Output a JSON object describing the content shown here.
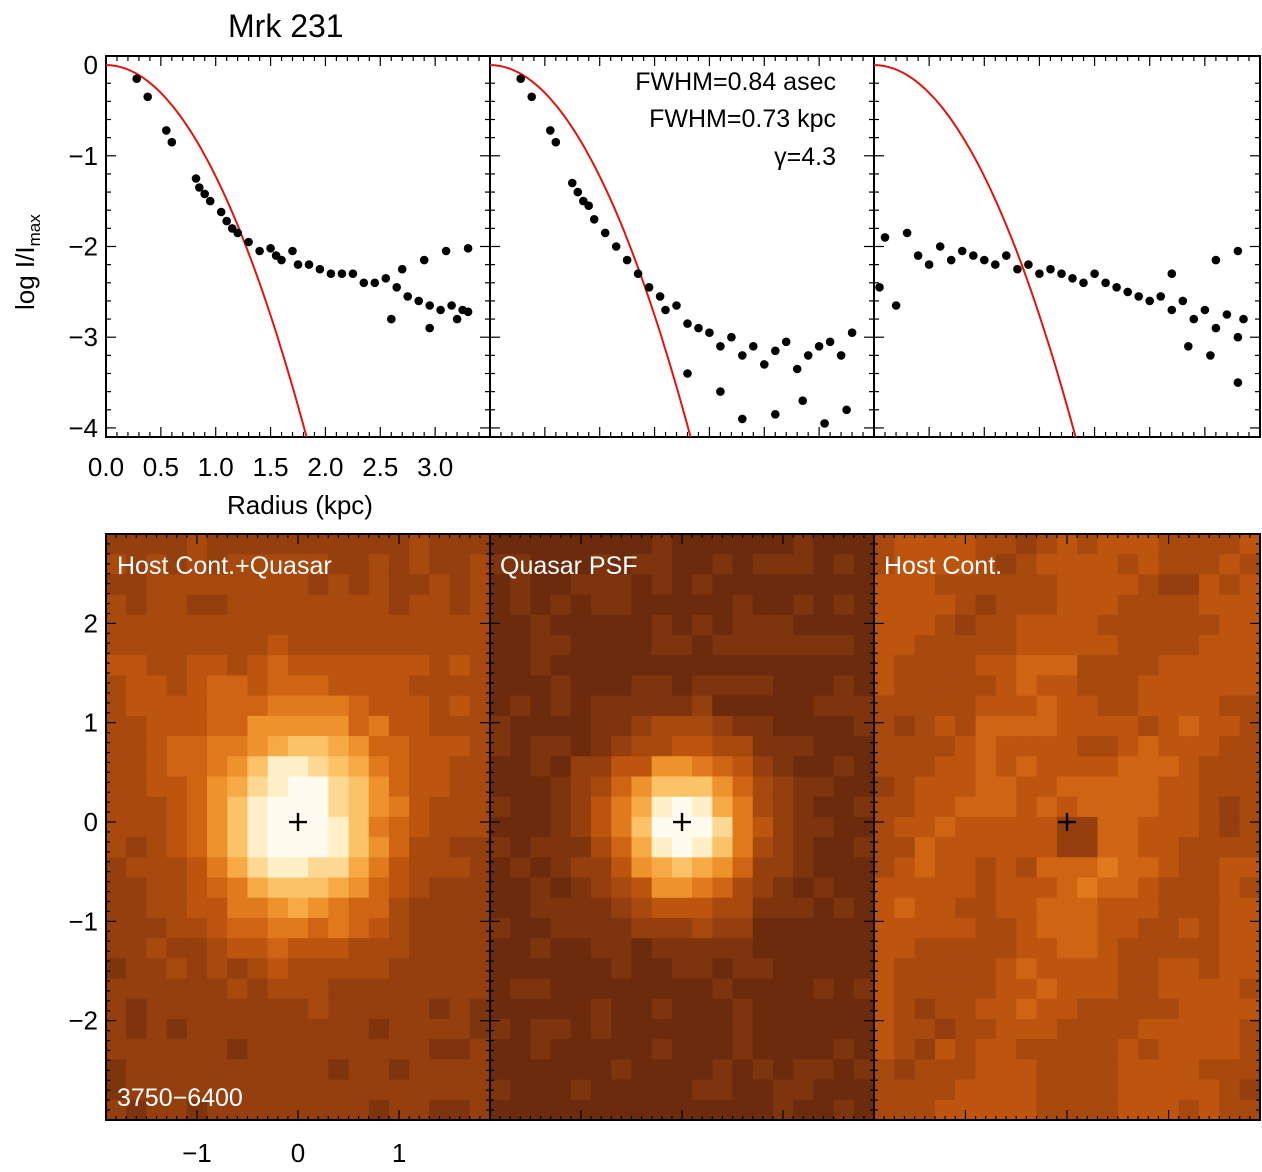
{
  "title": "Mrk 231",
  "chart_data": [
    {
      "type": "scatter",
      "panel": "profile-host-quasar",
      "ylabel_main": "log I/I",
      "ylabel_sub": "max",
      "xlabel": "Radius (kpc)",
      "xlim": [
        0.0,
        3.5
      ],
      "ylim": [
        -4.1,
        0.1
      ],
      "xticks": [
        "0.0",
        "0.5",
        "1.0",
        "1.5",
        "2.0",
        "2.5",
        "3.0"
      ],
      "yticks": [
        "0",
        "−1",
        "−2",
        "−3",
        "−4"
      ],
      "curve": "model PSF profile (red line)",
      "points": [
        [
          0.28,
          -0.15
        ],
        [
          0.38,
          -0.35
        ],
        [
          0.55,
          -0.72
        ],
        [
          0.6,
          -0.85
        ],
        [
          0.82,
          -1.25
        ],
        [
          0.85,
          -1.35
        ],
        [
          0.9,
          -1.42
        ],
        [
          0.95,
          -1.5
        ],
        [
          1.05,
          -1.62
        ],
        [
          1.1,
          -1.72
        ],
        [
          1.15,
          -1.8
        ],
        [
          1.2,
          -1.85
        ],
        [
          1.3,
          -1.95
        ],
        [
          1.4,
          -2.05
        ],
        [
          1.5,
          -2.02
        ],
        [
          1.55,
          -2.1
        ],
        [
          1.6,
          -2.15
        ],
        [
          1.7,
          -2.05
        ],
        [
          1.75,
          -2.2
        ],
        [
          1.85,
          -2.2
        ],
        [
          1.95,
          -2.25
        ],
        [
          2.05,
          -2.3
        ],
        [
          2.15,
          -2.3
        ],
        [
          2.25,
          -2.3
        ],
        [
          2.35,
          -2.4
        ],
        [
          2.45,
          -2.4
        ],
        [
          2.55,
          -2.35
        ],
        [
          2.65,
          -2.45
        ],
        [
          2.75,
          -2.55
        ],
        [
          2.85,
          -2.6
        ],
        [
          2.95,
          -2.65
        ],
        [
          3.05,
          -2.7
        ],
        [
          3.15,
          -2.65
        ],
        [
          3.25,
          -2.7
        ],
        [
          3.3,
          -2.72
        ],
        [
          2.7,
          -2.25
        ],
        [
          2.9,
          -2.15
        ],
        [
          3.1,
          -2.05
        ],
        [
          3.3,
          -2.02
        ],
        [
          2.6,
          -2.8
        ],
        [
          2.95,
          -2.9
        ],
        [
          3.2,
          -2.8
        ]
      ]
    },
    {
      "type": "scatter",
      "panel": "profile-quasar-psf",
      "annotations": [
        "FWHM=0.84 asec",
        "FWHM=0.73 kpc",
        "γ=4.3"
      ],
      "xlim": [
        0.0,
        3.5
      ],
      "ylim": [
        -4.1,
        0.1
      ],
      "points": [
        [
          0.28,
          -0.15
        ],
        [
          0.38,
          -0.35
        ],
        [
          0.55,
          -0.72
        ],
        [
          0.6,
          -0.85
        ],
        [
          0.75,
          -1.3
        ],
        [
          0.8,
          -1.4
        ],
        [
          0.85,
          -1.5
        ],
        [
          0.9,
          -1.55
        ],
        [
          0.95,
          -1.7
        ],
        [
          1.05,
          -1.85
        ],
        [
          1.15,
          -2.0
        ],
        [
          1.25,
          -2.15
        ],
        [
          1.35,
          -2.3
        ],
        [
          1.45,
          -2.45
        ],
        [
          1.55,
          -2.55
        ],
        [
          1.6,
          -2.7
        ],
        [
          1.7,
          -2.65
        ],
        [
          1.8,
          -2.85
        ],
        [
          1.9,
          -2.9
        ],
        [
          2.0,
          -2.95
        ],
        [
          2.1,
          -3.1
        ],
        [
          2.2,
          -3.0
        ],
        [
          2.3,
          -3.2
        ],
        [
          2.4,
          -3.1
        ],
        [
          2.5,
          -3.3
        ],
        [
          2.6,
          -3.15
        ],
        [
          2.7,
          -3.05
        ],
        [
          2.8,
          -3.35
        ],
        [
          2.9,
          -3.2
        ],
        [
          3.0,
          -3.1
        ],
        [
          3.1,
          -3.05
        ],
        [
          3.2,
          -3.2
        ],
        [
          3.3,
          -2.95
        ],
        [
          1.8,
          -3.4
        ],
        [
          2.1,
          -3.6
        ],
        [
          2.3,
          -3.9
        ],
        [
          2.6,
          -3.85
        ],
        [
          2.85,
          -3.7
        ],
        [
          3.05,
          -3.95
        ],
        [
          3.25,
          -3.8
        ]
      ]
    },
    {
      "type": "scatter",
      "panel": "profile-host-continuum",
      "xlim": [
        0.0,
        3.5
      ],
      "ylim": [
        -4.1,
        0.1
      ],
      "points": [
        [
          0.05,
          -2.45
        ],
        [
          0.1,
          -1.9
        ],
        [
          0.2,
          -2.65
        ],
        [
          0.3,
          -1.85
        ],
        [
          0.4,
          -2.1
        ],
        [
          0.5,
          -2.2
        ],
        [
          0.6,
          -2.0
        ],
        [
          0.7,
          -2.15
        ],
        [
          0.8,
          -2.05
        ],
        [
          0.9,
          -2.1
        ],
        [
          1.0,
          -2.15
        ],
        [
          1.1,
          -2.2
        ],
        [
          1.2,
          -2.1
        ],
        [
          1.3,
          -2.25
        ],
        [
          1.4,
          -2.2
        ],
        [
          1.5,
          -2.3
        ],
        [
          1.6,
          -2.25
        ],
        [
          1.7,
          -2.3
        ],
        [
          1.8,
          -2.35
        ],
        [
          1.9,
          -2.4
        ],
        [
          2.0,
          -2.3
        ],
        [
          2.1,
          -2.4
        ],
        [
          2.2,
          -2.45
        ],
        [
          2.3,
          -2.5
        ],
        [
          2.4,
          -2.55
        ],
        [
          2.5,
          -2.6
        ],
        [
          2.6,
          -2.55
        ],
        [
          2.7,
          -2.7
        ],
        [
          2.8,
          -2.6
        ],
        [
          2.9,
          -2.8
        ],
        [
          3.0,
          -2.7
        ],
        [
          3.1,
          -2.9
        ],
        [
          3.2,
          -2.75
        ],
        [
          3.3,
          -3.0
        ],
        [
          3.35,
          -2.8
        ],
        [
          2.85,
          -3.1
        ],
        [
          3.05,
          -3.2
        ],
        [
          3.3,
          -3.5
        ],
        [
          2.7,
          -2.3
        ],
        [
          3.1,
          -2.15
        ],
        [
          3.3,
          -2.05
        ]
      ]
    },
    {
      "type": "heatmap",
      "panel": "image-host-quasar",
      "label": "Host Cont.+Quasar",
      "wavelength": "3750−6400",
      "xlim": [
        -1.9,
        1.9
      ],
      "ylim": [
        -3.0,
        2.9
      ],
      "xticks": [
        "−1",
        "0",
        "1"
      ],
      "yticks": [
        "2",
        "1",
        "0",
        "−1",
        "−2"
      ],
      "center": [
        0,
        0
      ]
    },
    {
      "type": "heatmap",
      "panel": "image-quasar-psf",
      "label": "Quasar PSF",
      "center": [
        0,
        0
      ]
    },
    {
      "type": "heatmap",
      "panel": "image-host-continuum",
      "label": "Host Cont.",
      "center": [
        0,
        0
      ]
    }
  ]
}
